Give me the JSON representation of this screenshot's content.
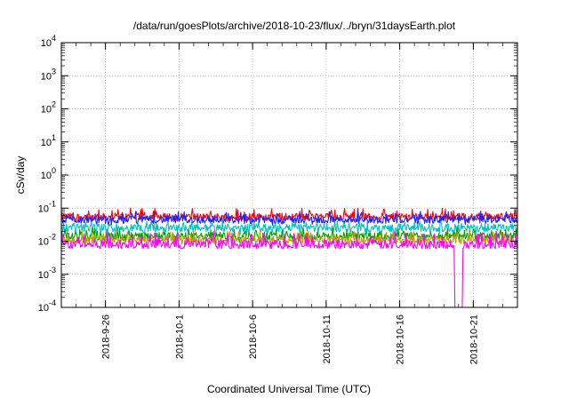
{
  "chart_data": {
    "type": "line",
    "title": "/data/run/goesPlots/archive/2018-10-23/flux/../bryn/31daysEarth.plot",
    "xlabel": "Coordinated Universal Time (UTC)",
    "ylabel": "cSv/day",
    "y_scale": "log",
    "ylim": [
      0.0001,
      10000
    ],
    "y_ticks": [
      {
        "base": "10",
        "exp": "-4"
      },
      {
        "base": "10",
        "exp": "-3"
      },
      {
        "base": "10",
        "exp": "-2"
      },
      {
        "base": "10",
        "exp": "-1"
      },
      {
        "base": "10",
        "exp": "0"
      },
      {
        "base": "10",
        "exp": "1"
      },
      {
        "base": "10",
        "exp": "2"
      },
      {
        "base": "10",
        "exp": "3"
      },
      {
        "base": "10",
        "exp": "4"
      }
    ],
    "xlim": [
      "2018-09-23",
      "2018-10-24"
    ],
    "x_ticks": [
      "2018-9-26",
      "2018-10-1",
      "2018-10-6",
      "2018-10-11",
      "2018-10-16",
      "2018-10-21"
    ],
    "x_tick_dates": [
      "2018-09-26",
      "2018-10-01",
      "2018-10-06",
      "2018-10-11",
      "2018-10-16",
      "2018-10-21"
    ],
    "grid": true,
    "legend": "none",
    "series": [
      {
        "color": "#ff0000",
        "typical": 0.055,
        "low": 0.04,
        "high": 0.1
      },
      {
        "color": "#2020ff",
        "typical": 0.045,
        "low": 0.03,
        "high": 0.08
      },
      {
        "color": "#00c0c0",
        "typical": 0.025,
        "low": 0.015,
        "high": 0.04
      },
      {
        "color": "#00a000",
        "typical": 0.014,
        "low": 0.009,
        "high": 0.025
      },
      {
        "color": "#c0a000",
        "typical": 0.011,
        "low": 0.008,
        "high": 0.02
      },
      {
        "color": "#ff00ff",
        "typical": 0.008,
        "low": 0.006,
        "high": 0.02
      }
    ],
    "features": [
      {
        "date": "2018-10-20",
        "value": 0.0001,
        "note": "magenta drop"
      }
    ]
  }
}
